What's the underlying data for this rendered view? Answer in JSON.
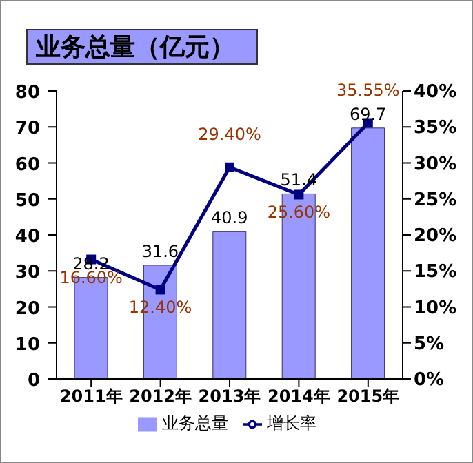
{
  "chart_data": {
    "type": "bar",
    "title": "业务总量（亿元）",
    "categories": [
      "2011年",
      "2012年",
      "2013年",
      "2014年",
      "2015年"
    ],
    "series": [
      {
        "name": "业务总量",
        "color": "#9999ff",
        "values": [
          28.2,
          31.6,
          40.9,
          51.4,
          69.7
        ],
        "value_labels": [
          "28.2",
          "31.6",
          "40.9",
          "51.4",
          "69.7"
        ]
      },
      {
        "name": "增长率",
        "type": "line",
        "axis": "y2",
        "color": "#000080",
        "marker": "square",
        "values": [
          16.6,
          12.4,
          29.4,
          25.6,
          35.55
        ],
        "value_labels": [
          "16.60%",
          "12.40%",
          "29.40%",
          "25.60%",
          "35.55%"
        ]
      }
    ],
    "ylim": [
      0,
      80
    ],
    "yticks": [
      0,
      10,
      20,
      30,
      40,
      50,
      60,
      70,
      80
    ],
    "y2lim": [
      0,
      40
    ],
    "y2ticks": [
      {
        "value": 0,
        "label": "0%"
      },
      {
        "value": 5,
        "label": "5%"
      },
      {
        "value": 10,
        "label": "10%"
      },
      {
        "value": 15,
        "label": "15%"
      },
      {
        "value": 20,
        "label": "20%"
      },
      {
        "value": 25,
        "label": "25%"
      },
      {
        "value": 30,
        "label": "30%"
      },
      {
        "value": 35,
        "label": "35%"
      },
      {
        "value": 40,
        "label": "40%"
      }
    ],
    "legend": "bottom",
    "grid": false
  }
}
